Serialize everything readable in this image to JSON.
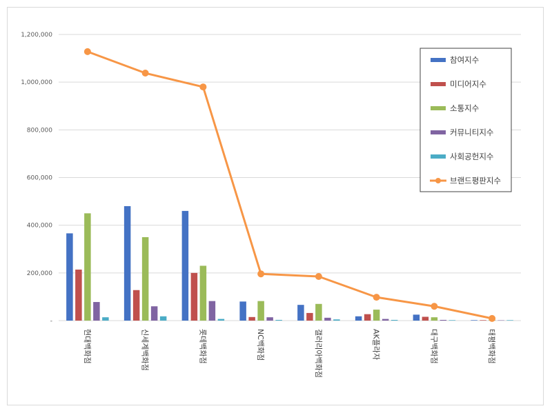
{
  "chart_data": {
    "type": "bar",
    "categories": [
      "현대백화점",
      "신세계백화점",
      "롯데백화점",
      "NC백화점",
      "갤러리아백화점",
      "AK플라자",
      "대구백화점",
      "태평백화점"
    ],
    "series": [
      {
        "name": "참여지수",
        "type": "bar",
        "color": "#4472c4",
        "values": [
          366000,
          480000,
          460000,
          80000,
          66000,
          18000,
          25000,
          2000
        ]
      },
      {
        "name": "미디어지수",
        "type": "bar",
        "color": "#c0504d",
        "values": [
          214000,
          128000,
          200000,
          15000,
          32000,
          27000,
          16000,
          2000
        ]
      },
      {
        "name": "소통지수",
        "type": "bar",
        "color": "#9bbb59",
        "values": [
          450000,
          350000,
          230000,
          82000,
          70000,
          46000,
          14000,
          3000
        ]
      },
      {
        "name": "커뮤니티지수",
        "type": "bar",
        "color": "#8064a2",
        "values": [
          78000,
          60000,
          82000,
          14000,
          12000,
          7000,
          3000,
          1000
        ]
      },
      {
        "name": "사회공헌지수",
        "type": "bar",
        "color": "#4bacc6",
        "values": [
          14000,
          18000,
          7000,
          3000,
          5000,
          3000,
          2000,
          2000
        ]
      },
      {
        "name": "브랜드평판지수",
        "type": "line",
        "color": "#f79646",
        "values": [
          1128000,
          1038000,
          980000,
          196000,
          185000,
          98000,
          60000,
          9000
        ]
      }
    ],
    "yticks": [
      "-",
      "200,000",
      "400,000",
      "600,000",
      "800,000",
      "1,000,000",
      "1,200,000"
    ],
    "ylim": [
      0,
      1200000
    ],
    "grid": true,
    "legend": "right"
  }
}
